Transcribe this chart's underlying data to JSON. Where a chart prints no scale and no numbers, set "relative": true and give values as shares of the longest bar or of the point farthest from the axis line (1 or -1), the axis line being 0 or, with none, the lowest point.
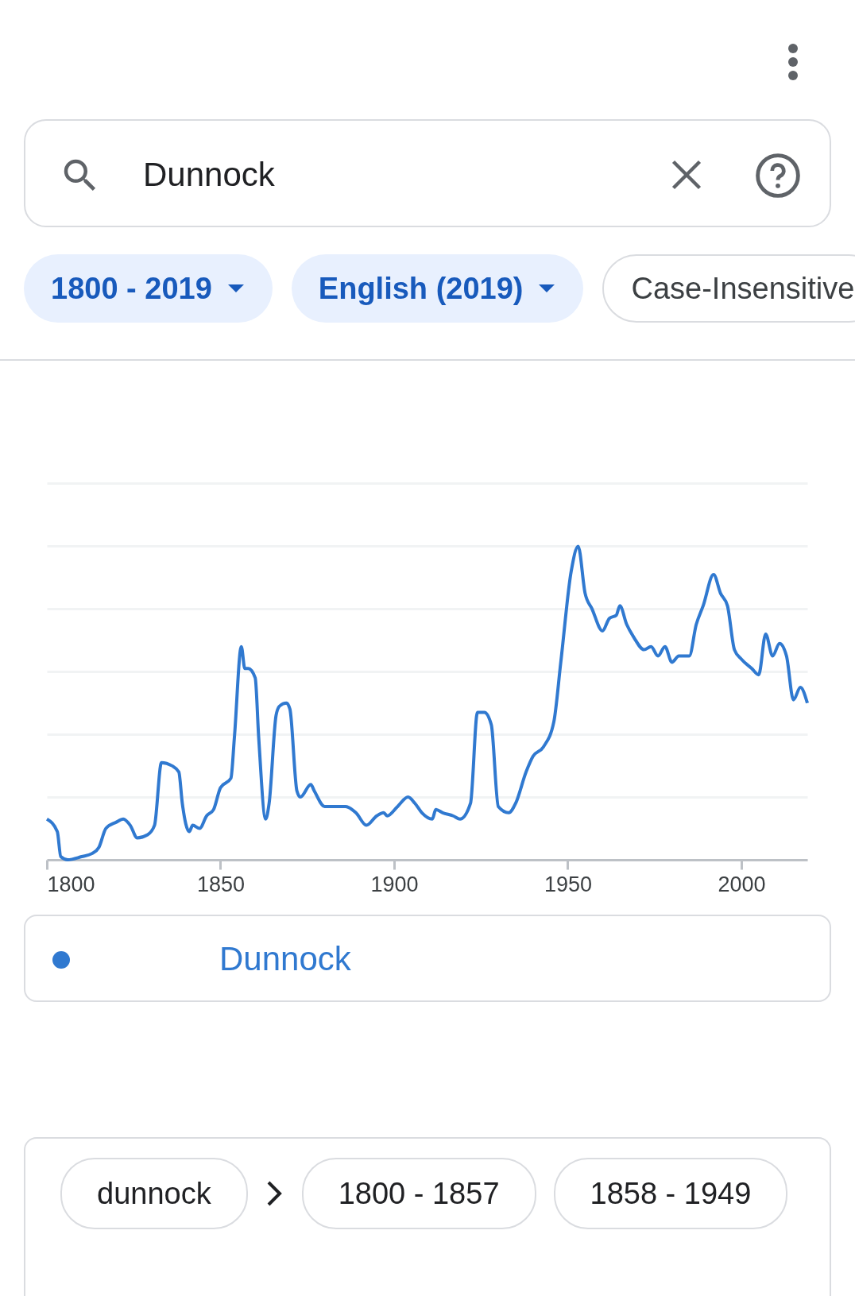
{
  "chart_data": {
    "type": "line",
    "relative": true,
    "xlim": [
      1800,
      2019
    ],
    "xticks": [
      1800,
      1850,
      1900,
      1950,
      2000
    ],
    "grid": "y",
    "legend": "bottom",
    "line_style": "solid",
    "marker": "none",
    "annotations": [
      "Dunnock",
      "1800 - 2019",
      "English (2019)",
      "Case-Insensitive",
      "dunnock",
      "1800 - 1857",
      "1858 - 1949"
    ],
    "x": [
      1800,
      1803,
      1804,
      1806,
      1810,
      1813,
      1815,
      1817,
      1820,
      1822,
      1824,
      1826,
      1829,
      1831,
      1833,
      1836,
      1838,
      1839,
      1841,
      1842,
      1844,
      1846,
      1848,
      1850,
      1853,
      1854,
      1856,
      1857,
      1858,
      1860,
      1861,
      1863,
      1864,
      1866,
      1867,
      1869,
      1870,
      1872,
      1873,
      1876,
      1877,
      1880,
      1883,
      1886,
      1889,
      1892,
      1895,
      1897,
      1898,
      1901,
      1904,
      1906,
      1908,
      1911,
      1912,
      1914,
      1917,
      1919,
      1922,
      1924,
      1926,
      1928,
      1930,
      1933,
      1935,
      1938,
      1940,
      1943,
      1946,
      1948,
      1951,
      1953,
      1955,
      1957,
      1960,
      1962,
      1964,
      1965,
      1967,
      1969,
      1972,
      1974,
      1976,
      1978,
      1980,
      1982,
      1985,
      1987,
      1989,
      1992,
      1994,
      1996,
      1998,
      2000,
      2003,
      2005,
      2007,
      2009,
      2011,
      2013,
      2015,
      2017,
      2019
    ],
    "series": [
      {
        "name": "Dunnock",
        "color": "#3079d0",
        "values": [
          0.13,
          0.09,
          0.01,
          0,
          0.01,
          0.02,
          0.04,
          0.1,
          0.12,
          0.13,
          0.11,
          0.07,
          0.08,
          0.11,
          0.31,
          0.3,
          0.28,
          0.18,
          0.09,
          0.11,
          0.1,
          0.14,
          0.16,
          0.23,
          0.26,
          0.39,
          0.68,
          0.61,
          0.61,
          0.58,
          0.39,
          0.13,
          0.18,
          0.46,
          0.49,
          0.5,
          0.48,
          0.22,
          0.2,
          0.24,
          0.22,
          0.17,
          0.17,
          0.17,
          0.15,
          0.11,
          0.14,
          0.15,
          0.14,
          0.17,
          0.2,
          0.18,
          0.15,
          0.13,
          0.16,
          0.15,
          0.14,
          0.13,
          0.18,
          0.47,
          0.47,
          0.43,
          0.17,
          0.15,
          0.18,
          0.28,
          0.33,
          0.36,
          0.44,
          0.63,
          0.92,
          1,
          0.85,
          0.8,
          0.73,
          0.77,
          0.78,
          0.81,
          0.75,
          0.71,
          0.67,
          0.68,
          0.65,
          0.68,
          0.63,
          0.65,
          0.65,
          0.75,
          0.81,
          0.91,
          0.85,
          0.81,
          0.67,
          0.64,
          0.61,
          0.59,
          0.72,
          0.65,
          0.69,
          0.65,
          0.51,
          0.55,
          0.5
        ]
      }
    ]
  }
}
